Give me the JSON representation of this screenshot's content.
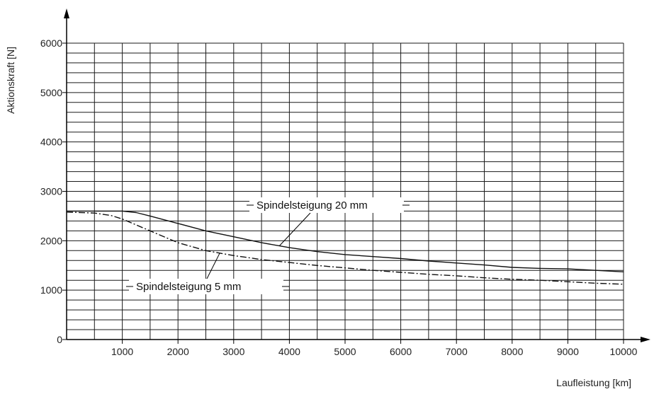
{
  "chart_data": {
    "type": "line",
    "title": "",
    "xlabel": "Laufleistung [km]",
    "ylabel": "Aktionskraft [N]",
    "xlim": [
      0,
      10000
    ],
    "ylim": [
      0,
      6000
    ],
    "x_ticks": [
      1000,
      2000,
      3000,
      4000,
      5000,
      6000,
      7000,
      8000,
      9000,
      10000
    ],
    "y_ticks": [
      0,
      1000,
      2000,
      3000,
      4000,
      5000,
      6000
    ],
    "x_tick_labels": [
      "1000",
      "2000",
      "3000",
      "4000",
      "5000",
      "6000",
      "7000",
      "8000",
      "9000",
      "10000"
    ],
    "y_tick_labels": [
      "0",
      "1000",
      "2000",
      "3000",
      "4000",
      "5000",
      "6000"
    ],
    "x_minor_step": 500,
    "y_minor_step": 200,
    "grid": true,
    "legend": "none",
    "line_color": "#111111",
    "series": [
      {
        "name": "Spindelsteigung 20 mm",
        "line_style": "solid",
        "x": [
          0,
          500,
          1000,
          1250,
          1500,
          2000,
          2500,
          3000,
          3500,
          4000,
          4500,
          5000,
          5500,
          6000,
          6500,
          7000,
          7500,
          8000,
          8500,
          9000,
          9500,
          10000
        ],
        "values": [
          2600,
          2600,
          2600,
          2570,
          2500,
          2350,
          2200,
          2080,
          1960,
          1860,
          1780,
          1720,
          1680,
          1640,
          1590,
          1550,
          1510,
          1460,
          1440,
          1430,
          1400,
          1370
        ]
      },
      {
        "name": "Spindelsteigung 5 mm",
        "line_style": "dashdot",
        "x": [
          0,
          500,
          800,
          1000,
          1250,
          1500,
          2000,
          2500,
          3000,
          3500,
          4000,
          4500,
          5000,
          5500,
          6000,
          6500,
          7000,
          7500,
          8000,
          8500,
          9000,
          9500,
          10000
        ],
        "values": [
          2580,
          2560,
          2510,
          2440,
          2320,
          2200,
          1960,
          1800,
          1700,
          1620,
          1560,
          1500,
          1450,
          1400,
          1360,
          1320,
          1290,
          1250,
          1220,
          1200,
          1170,
          1140,
          1120
        ]
      }
    ],
    "annotations": [
      {
        "text": "Spindelsteigung 20 mm",
        "series": 0
      },
      {
        "text": "Spindelsteigung 5 mm",
        "series": 1
      }
    ]
  }
}
